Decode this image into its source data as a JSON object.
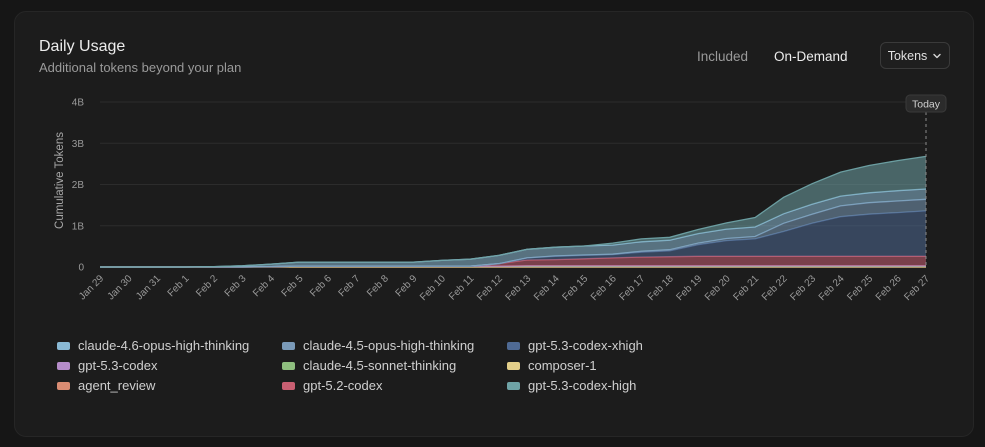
{
  "header": {
    "title": "Daily Usage",
    "subtitle": "Additional tokens beyond your plan",
    "mode_included": "Included",
    "mode_on_demand": "On-Demand",
    "unit_select": "Tokens"
  },
  "chart_data": {
    "type": "area",
    "stacked": true,
    "cumulative": true,
    "ylabel": "Cumulative Tokens",
    "ylim": [
      0,
      4000000000
    ],
    "yticks": [
      0,
      1000000000,
      2000000000,
      3000000000,
      4000000000
    ],
    "ytick_labels": [
      "0",
      "1B",
      "2B",
      "3B",
      "4B"
    ],
    "grid": true,
    "today_label": "Today",
    "categories": [
      "Jan 29",
      "Jan 30",
      "Jan 31",
      "Feb 1",
      "Feb 2",
      "Feb 3",
      "Feb 4",
      "Feb 5",
      "Feb 6",
      "Feb 7",
      "Feb 8",
      "Feb 9",
      "Feb 10",
      "Feb 11",
      "Feb 12",
      "Feb 13",
      "Feb 14",
      "Feb 15",
      "Feb 16",
      "Feb 17",
      "Feb 18",
      "Feb 19",
      "Feb 20",
      "Feb 21",
      "Feb 22",
      "Feb 23",
      "Feb 24",
      "Feb 25",
      "Feb 26",
      "Feb 27"
    ],
    "legend_position": "bottom",
    "series": [
      {
        "name": "agent_review",
        "color": "#d98c73",
        "values": [
          0,
          0,
          0,
          0,
          0,
          0,
          0,
          0,
          0,
          0,
          0,
          0,
          0,
          0,
          0,
          0,
          0,
          0,
          0,
          0,
          0,
          0,
          0,
          0,
          0,
          0,
          0,
          0,
          0,
          0
        ]
      },
      {
        "name": "composer-1",
        "color": "#e3cf8a",
        "values": [
          0,
          0,
          0,
          0,
          0,
          0,
          0,
          0,
          0,
          0,
          0,
          0,
          0,
          0,
          0,
          0,
          0,
          0,
          0,
          0,
          0,
          0,
          0,
          0,
          0,
          0,
          0,
          0,
          0,
          0
        ]
      },
      {
        "name": "claude-4.5-sonnet-thinking",
        "color": "#8fbf7f",
        "values": [
          0,
          0,
          0,
          0,
          0,
          0,
          10000000,
          20000000,
          20000000,
          20000000,
          20000000,
          20000000,
          20000000,
          20000000,
          20000000,
          20000000,
          20000000,
          20000000,
          20000000,
          20000000,
          20000000,
          20000000,
          20000000,
          20000000,
          20000000,
          20000000,
          20000000,
          20000000,
          20000000,
          20000000
        ]
      },
      {
        "name": "gpt-5.3-codex",
        "color": "#b58cc9",
        "values": [
          0,
          0,
          0,
          0,
          0,
          0,
          0,
          0,
          0,
          0,
          0,
          0,
          0,
          0,
          0,
          10000000,
          10000000,
          10000000,
          10000000,
          10000000,
          10000000,
          10000000,
          10000000,
          10000000,
          10000000,
          10000000,
          10000000,
          10000000,
          10000000,
          10000000
        ]
      },
      {
        "name": "gpt-5.2-codex",
        "color": "#c95f72",
        "values": [
          0,
          0,
          0,
          0,
          0,
          0,
          0,
          0,
          0,
          0,
          0,
          0,
          0,
          0,
          60000000,
          140000000,
          150000000,
          170000000,
          190000000,
          210000000,
          220000000,
          230000000,
          230000000,
          230000000,
          230000000,
          230000000,
          230000000,
          230000000,
          230000000,
          230000000
        ]
      },
      {
        "name": "gpt-5.3-codex-xhigh",
        "color": "#4f6a94",
        "values": [
          0,
          0,
          0,
          0,
          0,
          0,
          0,
          0,
          0,
          0,
          0,
          0,
          0,
          0,
          0,
          50000000,
          80000000,
          80000000,
          80000000,
          120000000,
          140000000,
          280000000,
          380000000,
          420000000,
          600000000,
          800000000,
          960000000,
          1020000000,
          1060000000,
          1100000000
        ]
      },
      {
        "name": "claude-4.5-opus-high-thinking",
        "color": "#7a9ab8",
        "values": [
          0,
          0,
          0,
          0,
          0,
          0,
          0,
          0,
          0,
          0,
          0,
          0,
          0,
          0,
          0,
          0,
          10000000,
          10000000,
          10000000,
          20000000,
          30000000,
          40000000,
          50000000,
          60000000,
          200000000,
          220000000,
          260000000,
          280000000,
          280000000,
          280000000
        ]
      },
      {
        "name": "claude-4.6-opus-high-thinking",
        "color": "#8ab9d4",
        "values": [
          0,
          0,
          0,
          0,
          10000000,
          30000000,
          60000000,
          100000000,
          100000000,
          100000000,
          100000000,
          100000000,
          140000000,
          170000000,
          200000000,
          210000000,
          210000000,
          220000000,
          220000000,
          230000000,
          230000000,
          230000000,
          230000000,
          230000000,
          230000000,
          240000000,
          240000000,
          240000000,
          250000000,
          250000000
        ]
      },
      {
        "name": "gpt-5.3-codex-high",
        "color": "#6fa3a6",
        "values": [
          0,
          0,
          0,
          0,
          0,
          0,
          0,
          0,
          0,
          0,
          0,
          0,
          0,
          0,
          0,
          0,
          0,
          0,
          50000000,
          70000000,
          70000000,
          100000000,
          150000000,
          230000000,
          400000000,
          500000000,
          580000000,
          660000000,
          730000000,
          790000000
        ]
      }
    ]
  },
  "legend": [
    {
      "name": "claude-4.6-opus-high-thinking",
      "color": "#8ab9d4"
    },
    {
      "name": "claude-4.5-opus-high-thinking",
      "color": "#7a9ab8"
    },
    {
      "name": "gpt-5.3-codex-xhigh",
      "color": "#4f6a94"
    },
    {
      "name": "gpt-5.3-codex",
      "color": "#b58cc9"
    },
    {
      "name": "claude-4.5-sonnet-thinking",
      "color": "#8fbf7f"
    },
    {
      "name": "composer-1",
      "color": "#e3cf8a"
    },
    {
      "name": "agent_review",
      "color": "#d98c73"
    },
    {
      "name": "gpt-5.2-codex",
      "color": "#c95f72"
    },
    {
      "name": "gpt-5.3-codex-high",
      "color": "#6fa3a6"
    }
  ]
}
